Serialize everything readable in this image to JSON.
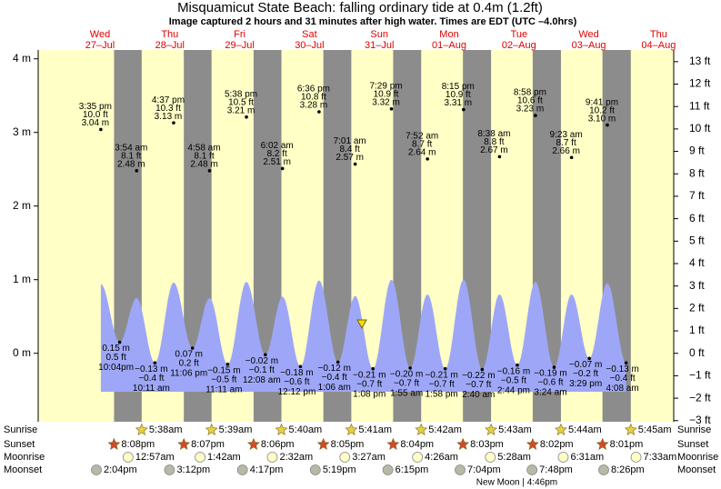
{
  "chart_data": {
    "type": "area",
    "title": "Misquamicut State Beach: falling  ordinary tide at 0.4m (1.2ft)",
    "subtitle": "Image captured 2 hours and 31 minutes after high water. Times are EDT (UTC –4.0hrs)",
    "color": "#9ea7f7",
    "ylim": [
      -0.93,
      4.12
    ],
    "yticks": [
      {
        "value": 0,
        "label": "0 m"
      },
      {
        "value": 1,
        "label": "1 m"
      },
      {
        "value": 2,
        "label": "2 m"
      },
      {
        "value": 3,
        "label": "3 m"
      },
      {
        "value": 4,
        "label": "4 m"
      }
    ],
    "y2lim": [
      -3.05,
      13.52
    ],
    "y2ticks": [
      {
        "value": -3,
        "label": "−3 ft"
      },
      {
        "value": -2,
        "label": "−2 ft"
      },
      {
        "value": -1,
        "label": "−1 ft"
      },
      {
        "value": 0,
        "label": "0 ft"
      },
      {
        "value": 1,
        "label": "1 ft"
      },
      {
        "value": 2,
        "label": "2 ft"
      },
      {
        "value": 3,
        "label": "3 ft"
      },
      {
        "value": 4,
        "label": "4 ft"
      },
      {
        "value": 5,
        "label": "5 ft"
      },
      {
        "value": 6,
        "label": "6 ft"
      },
      {
        "value": 7,
        "label": "7 ft"
      },
      {
        "value": 8,
        "label": "8 ft"
      },
      {
        "value": 9,
        "label": "9 ft"
      },
      {
        "value": 10,
        "label": "10 ft"
      },
      {
        "value": 11,
        "label": "11 ft"
      },
      {
        "value": 12,
        "label": "12 ft"
      },
      {
        "value": 13,
        "label": "13 ft"
      }
    ],
    "row_labels": [
      "Sunrise",
      "Sunset",
      "Moonrise",
      "Moonset"
    ],
    "days": [
      {
        "weekday": "Wed",
        "date": "27–Jul",
        "sunset": "8:08pm",
        "moonset": "2:04pm",
        "highs": [
          {
            "time": "3:35 pm",
            "ft": "10.0 ft",
            "value": 3.04,
            "value_label": "3.04 m",
            "curve": 0.94
          }
        ],
        "lows": [
          {
            "time": "10:04pm",
            "ft": "0.5 ft",
            "value": 0.15,
            "value_label": "0.15 m"
          }
        ]
      },
      {
        "weekday": "Thu",
        "date": "28–Jul",
        "sunrise": "5:38am",
        "sunset": "8:07pm",
        "moonrise": "12:57am",
        "moonset": "3:12pm",
        "highs": [
          {
            "time": "3:54 am",
            "ft": "8.1 ft",
            "value": 2.48,
            "value_label": "2.48 m",
            "curve": 0.75
          },
          {
            "time": "4:37 pm",
            "ft": "10.3 ft",
            "value": 3.13,
            "value_label": "3.13 m",
            "curve": 0.96
          }
        ],
        "lows": [
          {
            "time": "10:11 am",
            "ft": "−0.4 ft",
            "value": -0.13,
            "value_label": "−0.13 m"
          },
          {
            "time": "11:06 pm",
            "ft": "0.2 ft",
            "value": 0.07,
            "value_label": "0.07 m"
          }
        ]
      },
      {
        "weekday": "Fri",
        "date": "29–Jul",
        "sunrise": "5:39am",
        "sunset": "8:06pm",
        "moonrise": "1:42am",
        "moonset": "4:17pm",
        "highs": [
          {
            "time": "4:58 am",
            "ft": "8.1 ft",
            "value": 2.48,
            "value_label": "2.48 m",
            "curve": 0.75
          },
          {
            "time": "5:38 pm",
            "ft": "10.5 ft",
            "value": 3.21,
            "value_label": "3.21 m",
            "curve": 0.97
          }
        ],
        "lows": [
          {
            "time": "11:11 am",
            "ft": "−0.5 ft",
            "value": -0.15,
            "value_label": "−0.15 m"
          }
        ]
      },
      {
        "weekday": "Sat",
        "date": "30–Jul",
        "sunrise": "5:40am",
        "sunset": "8:05pm",
        "moonrise": "2:32am",
        "moonset": "5:19pm",
        "highs": [
          {
            "time": "6:02 am",
            "ft": "8.2 ft",
            "value": 2.51,
            "value_label": "2.51 m",
            "curve": 0.77
          },
          {
            "time": "6:36 pm",
            "ft": "10.8 ft",
            "value": 3.28,
            "value_label": "3.28 m",
            "curve": 0.99
          }
        ],
        "lows": [
          {
            "time": "12:08 am",
            "ft": "−0.1 ft",
            "value": -0.02,
            "value_label": "−0.02 m"
          },
          {
            "time": "12:12 pm",
            "ft": "−0.6 ft",
            "value": -0.18,
            "value_label": "−0.18 m"
          }
        ]
      },
      {
        "weekday": "Sun",
        "date": "31–Jul",
        "sunrise": "5:41am",
        "sunset": "8:04pm",
        "moonrise": "3:27am",
        "moonset": "6:15pm",
        "highs": [
          {
            "time": "7:01 am",
            "ft": "8.4 ft",
            "value": 2.57,
            "value_label": "2.57 m",
            "curve": 0.78
          },
          {
            "time": "7:29 pm",
            "ft": "10.9 ft",
            "value": 3.32,
            "value_label": "3.32 m",
            "curve": 1.0
          }
        ],
        "lows": [
          {
            "time": "1:06 am",
            "ft": "−0.4 ft",
            "value": -0.12,
            "value_label": "−0.12 m"
          },
          {
            "time": "1:08 pm",
            "ft": "−0.7 ft",
            "value": -0.21,
            "value_label": "−0.21 m"
          }
        ]
      },
      {
        "weekday": "Mon",
        "date": "01–Aug",
        "sunrise": "5:42am",
        "sunset": "8:03pm",
        "moonrise": "4:26am",
        "moonset": "7:04pm",
        "highs": [
          {
            "time": "7:52 am",
            "ft": "8.7 ft",
            "value": 2.64,
            "value_label": "2.64 m",
            "curve": 0.8
          },
          {
            "time": "8:15 pm",
            "ft": "10.9 ft",
            "value": 3.31,
            "value_label": "3.31 m",
            "curve": 1.0
          }
        ],
        "lows": [
          {
            "time": "1:55 am",
            "ft": "−0.7 ft",
            "value": -0.2,
            "value_label": "−0.20 m"
          },
          {
            "time": "1:58 pm",
            "ft": "−0.7 ft",
            "value": -0.21,
            "value_label": "−0.21 m"
          }
        ]
      },
      {
        "weekday": "Tue",
        "date": "02–Aug",
        "sunrise": "5:43am",
        "sunset": "8:02pm",
        "moonrise": "5:28am",
        "moonset": "7:48pm",
        "moon_phase": "New Moon | 4:46pm",
        "highs": [
          {
            "time": "8:38 am",
            "ft": "8.8 ft",
            "value": 2.67,
            "value_label": "2.67 m",
            "curve": 0.8
          },
          {
            "time": "8:58 pm",
            "ft": "10.6 ft",
            "value": 3.23,
            "value_label": "3.23 m",
            "curve": 0.97
          }
        ],
        "lows": [
          {
            "time": "2:40 am",
            "ft": "−0.7 ft",
            "value": -0.22,
            "value_label": "−0.22 m"
          },
          {
            "time": "2:44 pm",
            "ft": "−0.5 ft",
            "value": -0.16,
            "value_label": "−0.16 m"
          }
        ]
      },
      {
        "weekday": "Wed",
        "date": "03–Aug",
        "sunrise": "5:44am",
        "sunset": "8:01pm",
        "moonrise": "6:31am",
        "moonset": "8:26pm",
        "highs": [
          {
            "time": "9:23 am",
            "ft": "8.7 ft",
            "value": 2.66,
            "value_label": "2.66 m",
            "curve": 0.8
          },
          {
            "time": "9:41 pm",
            "ft": "10.2 ft",
            "value": 3.1,
            "value_label": "3.10 m",
            "curve": 0.95
          }
        ],
        "lows": [
          {
            "time": "3:24 am",
            "ft": "−0.6 ft",
            "value": -0.19,
            "value_label": "−0.19 m"
          },
          {
            "time": "3:29 pm",
            "ft": "−0.2 ft",
            "value": -0.07,
            "value_label": "−0.07 m"
          }
        ]
      },
      {
        "weekday": "Thu",
        "date": "04–Aug",
        "sunrise": "5:45am",
        "moonrise": "7:33am",
        "highs": [],
        "lows": [
          {
            "time": "4:08 am",
            "ft": "−0.4 ft",
            "value": -0.13,
            "value_label": "−0.13 m"
          }
        ]
      }
    ]
  }
}
